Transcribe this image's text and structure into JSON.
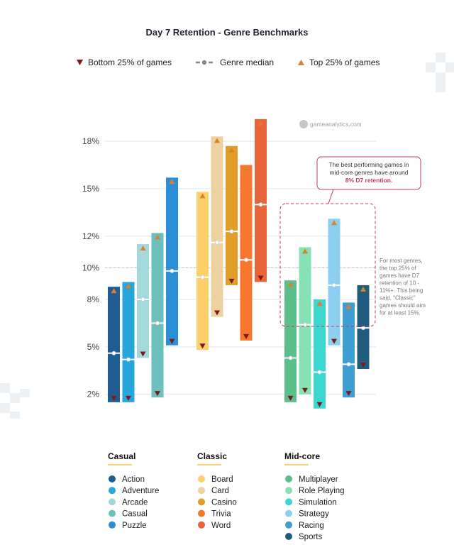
{
  "chart_data": {
    "type": "range-bar",
    "title": "Day 7 Retention - Genre Benchmarks",
    "legend": {
      "bottom": "Bottom 25% of games",
      "median": "Genre median",
      "top": "Top 25% of games"
    },
    "watermark": "gameanalytics.com",
    "ylim": [
      1,
      20.2
    ],
    "y_ticks": [
      2,
      5,
      8,
      10,
      12,
      15,
      18
    ],
    "y_tick_labels": [
      "2%",
      "5%",
      "8%",
      "10%",
      "12%",
      "15%",
      "18%"
    ],
    "reference_line": 10,
    "groups": [
      {
        "name": "Casual",
        "series": [
          {
            "name": "Action",
            "color": "#1f5c91",
            "bottom": 1.5,
            "median": 4.6,
            "top": 8.8
          },
          {
            "name": "Adventure",
            "color": "#27a5dd",
            "bottom": 1.5,
            "median": 4.2,
            "top": 9.1
          },
          {
            "name": "Arcade",
            "color": "#a3d9dd",
            "bottom": 4.3,
            "median": 8.0,
            "top": 11.5
          },
          {
            "name": "Casual",
            "color": "#6bbfbc",
            "bottom": 1.8,
            "median": 6.5,
            "top": 12.2
          },
          {
            "name": "Puzzle",
            "color": "#2a8fd6",
            "bottom": 5.1,
            "median": 9.8,
            "top": 15.7
          }
        ]
      },
      {
        "name": "Classic",
        "series": [
          {
            "name": "Board",
            "color": "#fcd16b",
            "bottom": 4.8,
            "median": 9.4,
            "top": 14.8
          },
          {
            "name": "Card",
            "color": "#ecd29e",
            "bottom": 6.9,
            "median": 11.6,
            "top": 18.3
          },
          {
            "name": "Casino",
            "color": "#e09d28",
            "bottom": 8.9,
            "median": 12.3,
            "top": 17.7
          },
          {
            "name": "Trivia",
            "color": "#f7772e",
            "bottom": 5.4,
            "median": 10.5,
            "top": 16.5
          },
          {
            "name": "Word",
            "color": "#e8653a",
            "bottom": 9.1,
            "median": 14.0,
            "top": 19.4
          }
        ]
      },
      {
        "name": "Mid-core",
        "series": [
          {
            "name": "Multiplayer",
            "color": "#5bbf8a",
            "bottom": 1.5,
            "median": 4.3,
            "top": 9.2
          },
          {
            "name": "Role Playing",
            "color": "#86e2b4",
            "bottom": 2.0,
            "median": 6.4,
            "top": 11.3
          },
          {
            "name": "Simulation",
            "color": "#3dd6d0",
            "bottom": 1.1,
            "median": 3.4,
            "top": 8.0
          },
          {
            "name": "Strategy",
            "color": "#8ccfee",
            "bottom": 5.1,
            "median": 8.9,
            "top": 13.1
          },
          {
            "name": "Racing",
            "color": "#3e9dd1",
            "bottom": 1.8,
            "median": 3.9,
            "top": 7.8
          },
          {
            "name": "Sports",
            "color": "#1f5c7e",
            "bottom": 3.6,
            "median": 6.2,
            "top": 8.9
          }
        ]
      }
    ],
    "annotations": {
      "callout_lines": [
        "The best performing games in",
        "mid-core genres have around"
      ],
      "callout_highlight": "8% D7 retention.",
      "side_note_lines": [
        "For most genres,",
        "the top 25% of",
        "games have D7",
        "retention of 10 -",
        "11%+. This being",
        "said, \"Classic\"",
        "games should aim",
        "for at least 15%."
      ]
    }
  }
}
